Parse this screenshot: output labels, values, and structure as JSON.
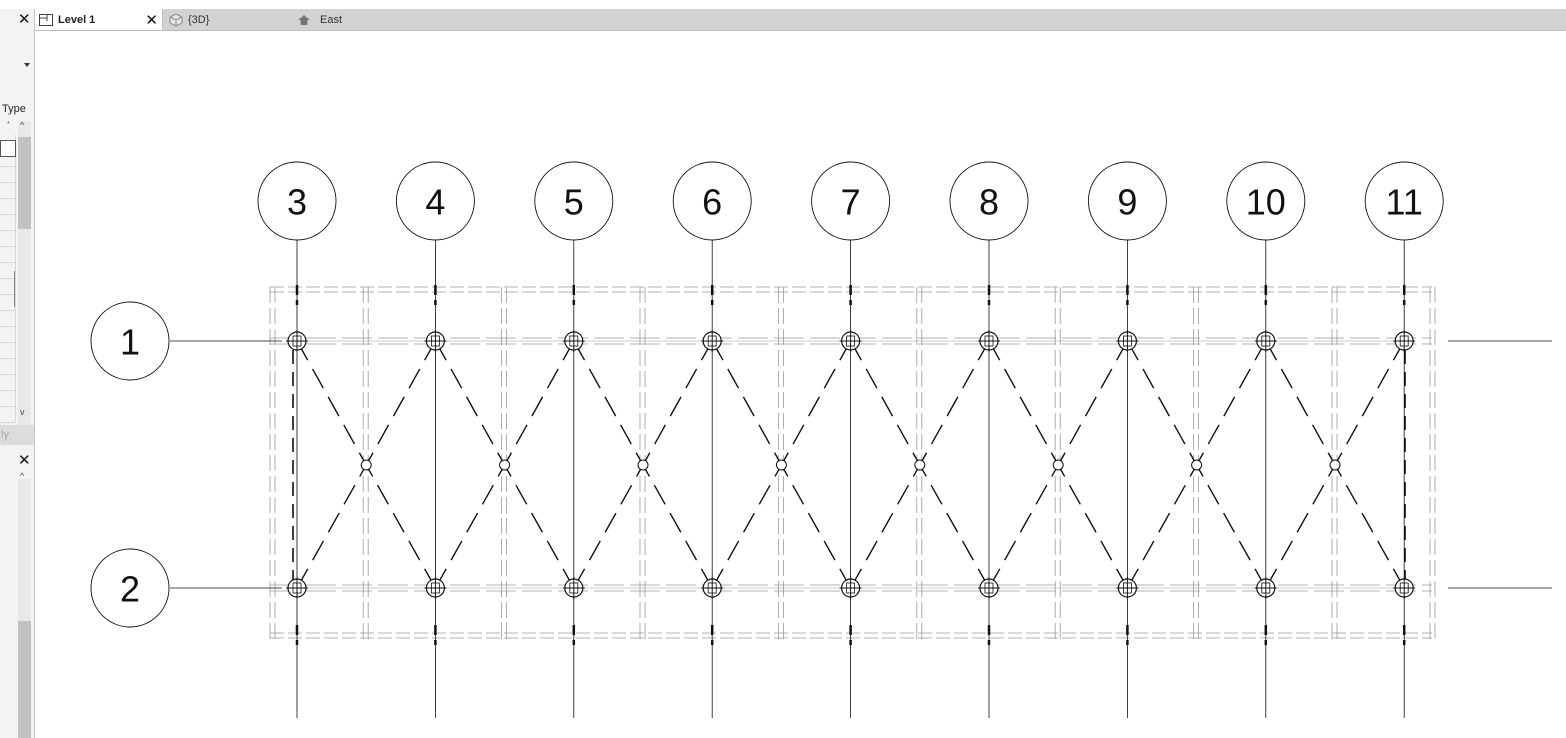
{
  "tabs": [
    {
      "label": "Level 1",
      "icon": "floor-plan-icon",
      "active": true,
      "close": "✕"
    },
    {
      "label": "{3D}",
      "icon": "3d-view-icon",
      "active": false
    },
    {
      "label": "East",
      "icon": "elevation-icon",
      "active": false
    }
  ],
  "left_panel": {
    "close_top": "✕",
    "type_label": "Type",
    "sort_marker": "*",
    "apply_label": "ly",
    "close_bottom": "✕",
    "scroll_up": "^",
    "scroll_down": "v"
  },
  "grids": {
    "vertical": [
      "3",
      "4",
      "5",
      "6",
      "7",
      "8",
      "9",
      "10",
      "11"
    ],
    "horizontal": [
      "1",
      "2"
    ]
  },
  "colors": {
    "tabbar": "#d2d2d2",
    "line": "#111111",
    "hidden_line": "#9a9a9a"
  }
}
